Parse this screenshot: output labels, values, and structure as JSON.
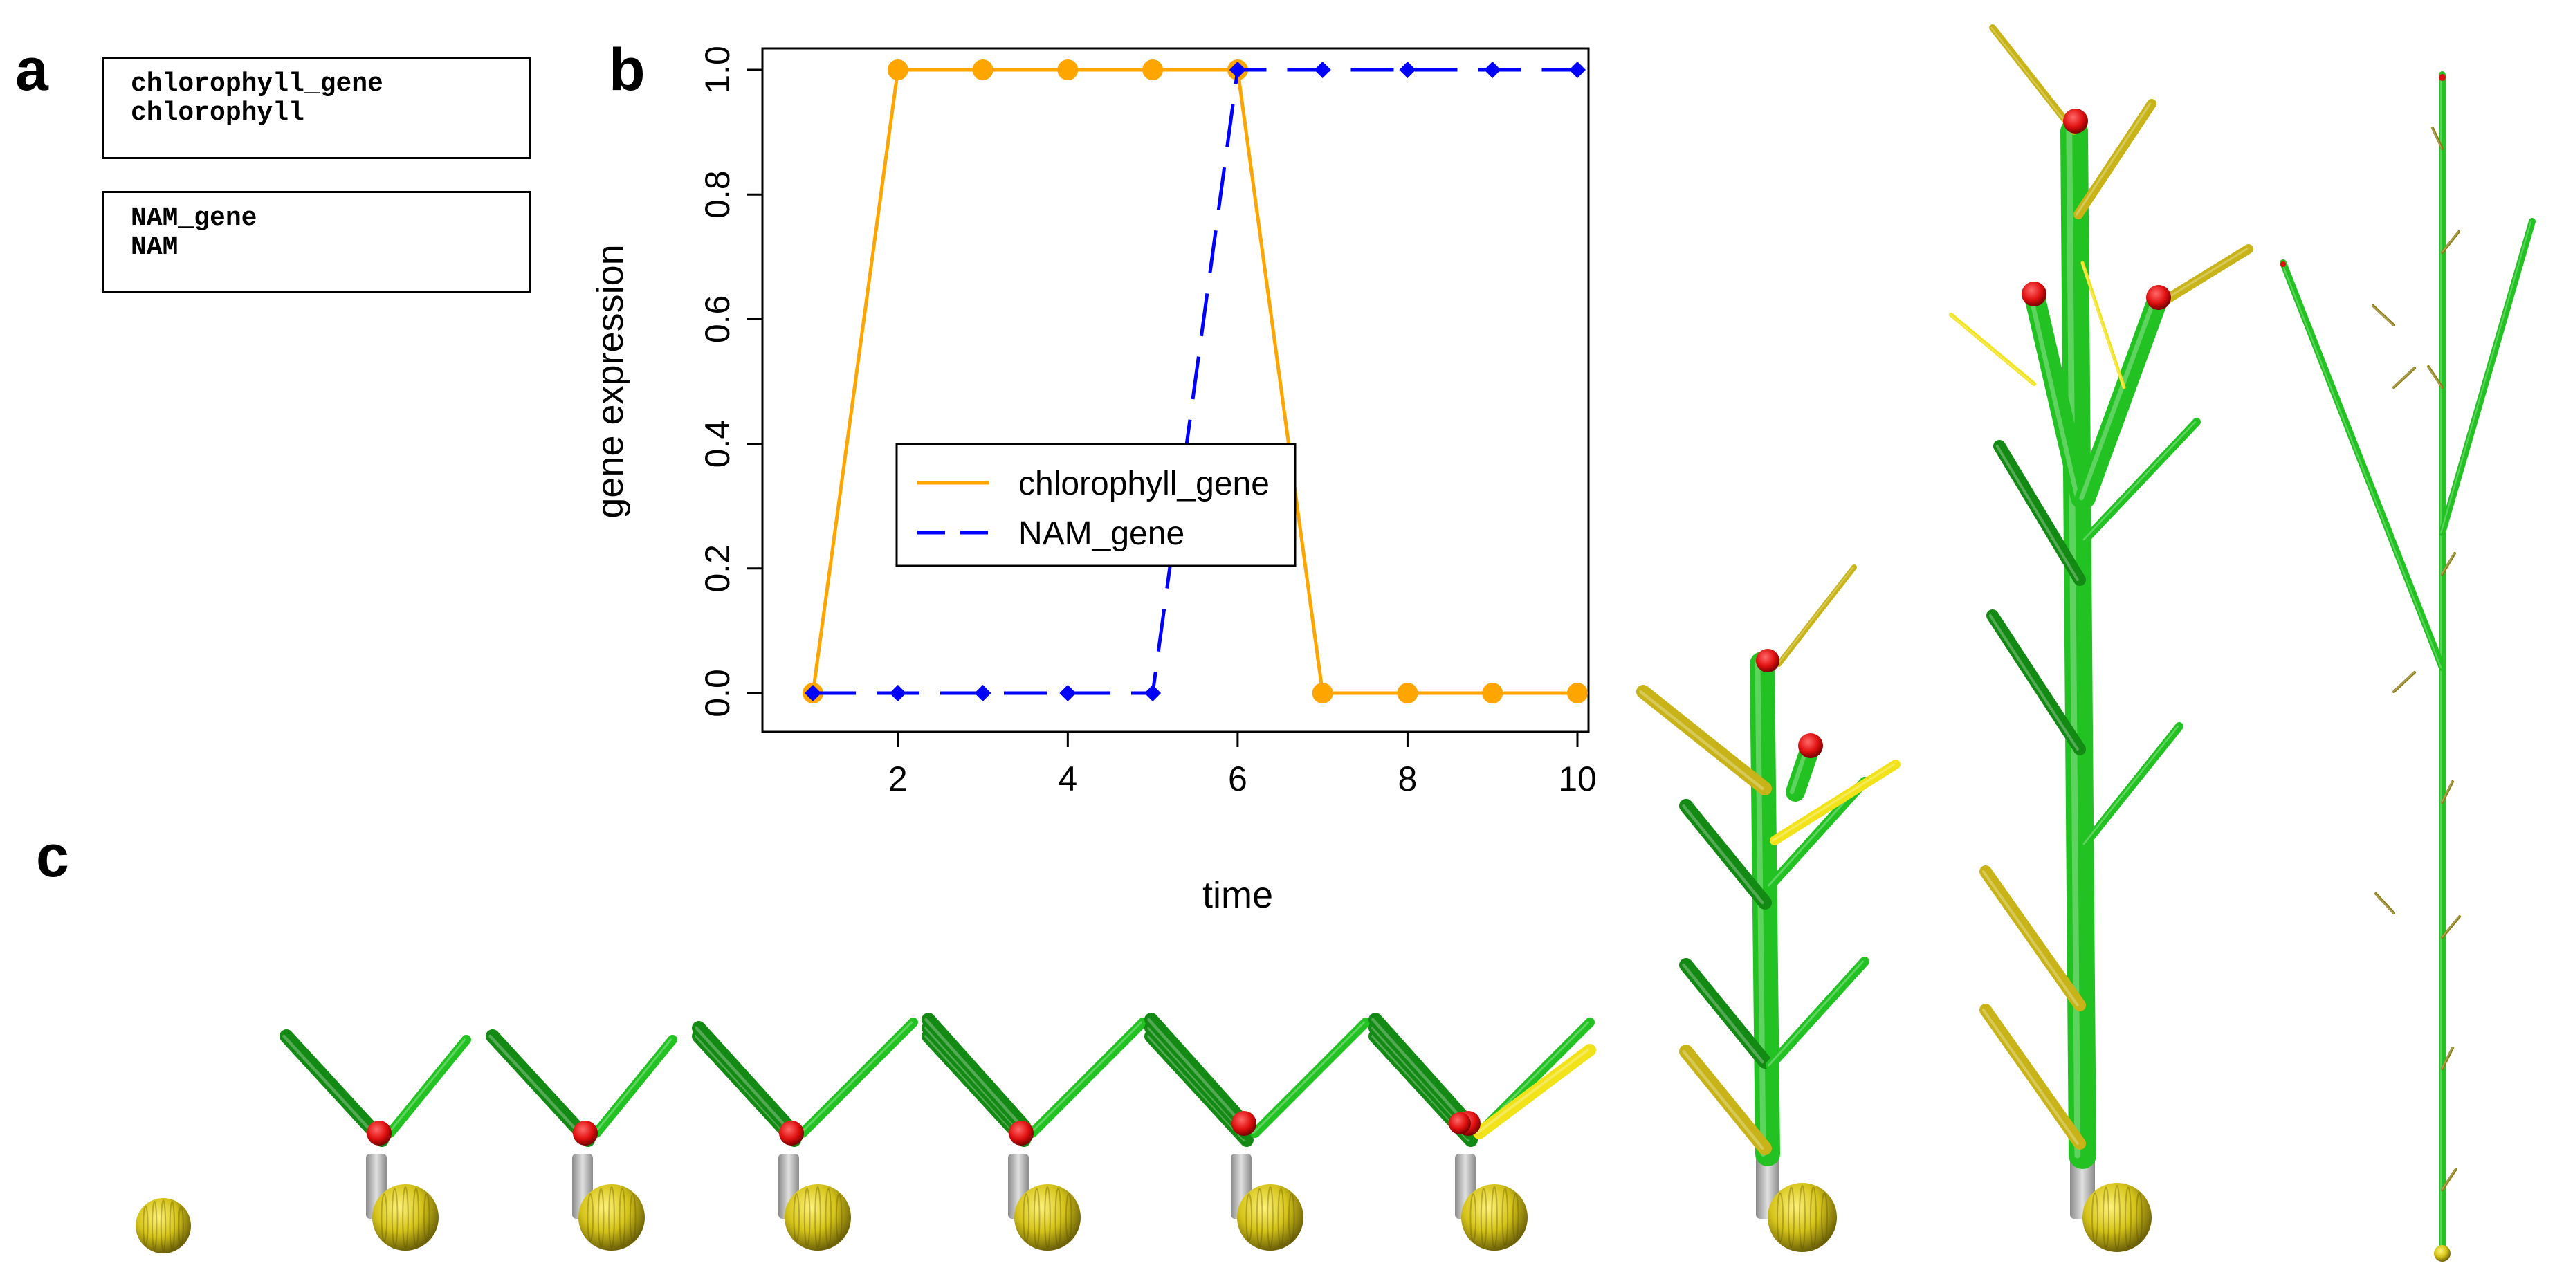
{
  "panels": {
    "a": "a",
    "b": "b",
    "c": "c"
  },
  "gene_boxes": [
    {
      "lines": [
        "chlorophyll_gene",
        "chlorophyll"
      ]
    },
    {
      "lines": [
        "NAM_gene",
        "NAM"
      ]
    }
  ],
  "chart_data": {
    "type": "line",
    "title": "",
    "xlabel": "time",
    "ylabel": "gene expression",
    "xlim": [
      1,
      10
    ],
    "ylim": [
      0,
      1
    ],
    "x_ticks": [
      2,
      4,
      6,
      8,
      10
    ],
    "y_ticks": [
      0.0,
      0.2,
      0.4,
      0.6,
      0.8,
      1.0
    ],
    "y_tick_labels": [
      "0.0",
      "0.2",
      "0.4",
      "0.6",
      "0.8",
      "1.0"
    ],
    "grid": false,
    "legend_placement": "center",
    "x": [
      1,
      2,
      3,
      4,
      5,
      6,
      7,
      8,
      9,
      10
    ],
    "series": [
      {
        "name": "chlorophyll_gene",
        "values": [
          0,
          1,
          1,
          1,
          1,
          1,
          0,
          0,
          0,
          0
        ],
        "color": "#ffa500",
        "line": "solid",
        "marker": "circle"
      },
      {
        "name": "NAM_gene",
        "values": [
          0,
          0,
          0,
          0,
          0,
          1,
          1,
          1,
          1,
          1
        ],
        "color": "#0000ff",
        "line": "dashed",
        "marker": "diamond"
      }
    ]
  },
  "colors": {
    "stem": "#22c222",
    "stem_dark": "#138a13",
    "meristem": "#e01010",
    "seed": "#d6c41a",
    "base": "#b5b5b5",
    "senescent_leaf": "#c8b418",
    "yellow_leaf": "#f2e21a"
  }
}
